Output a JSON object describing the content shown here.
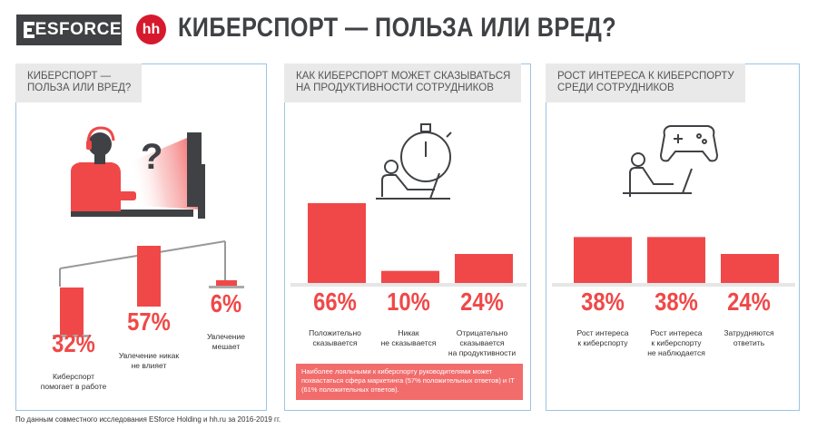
{
  "header": {
    "brand": "ESFORCE",
    "partner_logo": "hh",
    "title": "КИБЕРСПОРТ — ПОЛЬЗА ИЛИ ВРЕД?"
  },
  "colors": {
    "accent": "#f04848",
    "dark": "#3f4144",
    "title_bg": "#e9e9e9",
    "border": "#9cc4e4"
  },
  "panels": [
    {
      "title_lines": [
        "КИБЕРСПОРТ —",
        "ПОЛЬЗА ИЛИ ВРЕД?"
      ],
      "question_mark": "?",
      "items": [
        {
          "value": "32%",
          "label_lines": [
            "Киберспорт",
            "помогает в работе"
          ]
        },
        {
          "value": "57%",
          "label_lines": [
            "Увлечение никак",
            "не влияет"
          ]
        },
        {
          "value": "6%",
          "label_lines": [
            "Увлечение",
            "мешает"
          ]
        }
      ]
    },
    {
      "title_lines": [
        "КАК КИБЕРСПОРТ МОЖЕТ СКАЗЫВАТЬСЯ",
        "НА ПРОДУКТИВНОСТИ СОТРУДНИКОВ"
      ],
      "items": [
        {
          "value": "66%",
          "label_lines": [
            "Положительно",
            "сказывается"
          ]
        },
        {
          "value": "10%",
          "label_lines": [
            "Никак",
            "не сказывается"
          ]
        },
        {
          "value": "24%",
          "label_lines": [
            "Отрицательно",
            "сказывается",
            "на продуктивности"
          ]
        }
      ],
      "note": "Наиболее лояльными к киберспорту руководителями может похвастаться сфера маркетинга (57% положительных ответов) и IT (61% положительных ответов)."
    },
    {
      "title_lines": [
        "РОСТ ИНТЕРЕСА К КИБЕРСПОРТУ",
        "СРЕДИ СОТРУДНИКОВ"
      ],
      "items": [
        {
          "value": "38%",
          "label_lines": [
            "Рост интереса",
            "к киберспорту"
          ]
        },
        {
          "value": "38%",
          "label_lines": [
            "Рост интереса",
            "к киберспорту",
            "не наблюдается"
          ]
        },
        {
          "value": "24%",
          "label_lines": [
            "Затрудняются",
            "ответить"
          ]
        }
      ]
    }
  ],
  "footer": "По данным совместного исследования ESforce Holding и hh.ru за 2016-2019 гг.",
  "chart_data": [
    {
      "type": "bar",
      "title": "КИБЕРСПОРТ — ПОЛЬЗА ИЛИ ВРЕД?",
      "categories": [
        "Киберспорт помогает в работе",
        "Увлечение никак не влияет",
        "Увлечение мешает"
      ],
      "values": [
        32,
        57,
        6
      ],
      "unit": "%"
    },
    {
      "type": "bar",
      "title": "КАК КИБЕРСПОРТ МОЖЕТ СКАЗЫВАТЬСЯ НА ПРОДУКТИВНОСТИ СОТРУДНИКОВ",
      "categories": [
        "Положительно сказывается",
        "Никак не сказывается",
        "Отрицательно сказывается на продуктивности"
      ],
      "values": [
        66,
        10,
        24
      ],
      "unit": "%"
    },
    {
      "type": "bar",
      "title": "РОСТ ИНТЕРЕСА К КИБЕРСПОРТУ СРЕДИ СОТРУДНИКОВ",
      "categories": [
        "Рост интереса к киберспорту",
        "Рост интереса к киберспорту не наблюдается",
        "Затрудняются ответить"
      ],
      "values": [
        38,
        38,
        24
      ],
      "unit": "%"
    }
  ]
}
